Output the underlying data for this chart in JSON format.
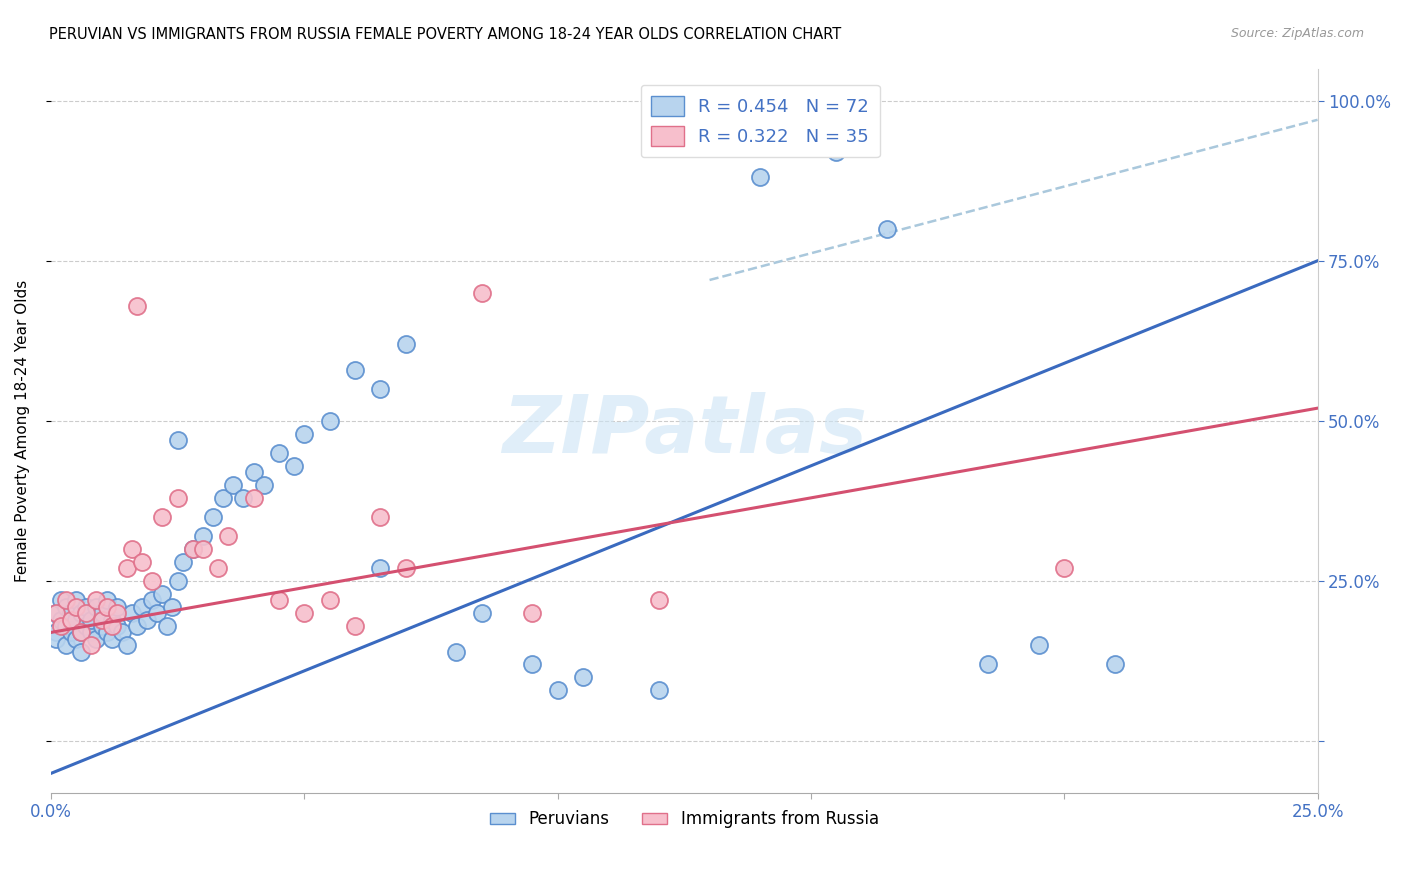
{
  "title": "PERUVIAN VS IMMIGRANTS FROM RUSSIA FEMALE POVERTY AMONG 18-24 YEAR OLDS CORRELATION CHART",
  "source": "Source: ZipAtlas.com",
  "ylabel": "Female Poverty Among 18-24 Year Olds",
  "xlim": [
    0.0,
    0.25
  ],
  "ylim": [
    -0.08,
    1.05
  ],
  "peruvians_R": 0.454,
  "peruvians_N": 72,
  "russia_R": 0.322,
  "russia_N": 35,
  "peruvian_fill": "#b8d4ee",
  "russia_fill": "#f7bfcc",
  "peruvian_edge": "#5b8fcf",
  "russia_edge": "#e0708a",
  "peruvian_line_color": "#3a6abf",
  "russia_line_color": "#d45070",
  "dashed_line_color": "#aac8dc",
  "watermark": "ZIPatlas",
  "blue_line_x0": 0.0,
  "blue_line_y0": -0.05,
  "blue_line_x1": 0.25,
  "blue_line_y1": 0.75,
  "pink_line_x0": 0.0,
  "pink_line_y0": 0.17,
  "pink_line_x1": 0.25,
  "pink_line_y1": 0.52,
  "dash_line_x0": 0.13,
  "dash_line_y0": 0.72,
  "dash_line_x1": 0.25,
  "dash_line_y1": 0.97,
  "peru_x": [
    0.001,
    0.001,
    0.001,
    0.002,
    0.002,
    0.003,
    0.003,
    0.003,
    0.004,
    0.004,
    0.005,
    0.005,
    0.005,
    0.006,
    0.006,
    0.006,
    0.007,
    0.007,
    0.008,
    0.008,
    0.009,
    0.009,
    0.01,
    0.01,
    0.011,
    0.011,
    0.012,
    0.012,
    0.013,
    0.013,
    0.014,
    0.015,
    0.016,
    0.017,
    0.018,
    0.019,
    0.02,
    0.021,
    0.022,
    0.023,
    0.024,
    0.025,
    0.026,
    0.028,
    0.03,
    0.032,
    0.034,
    0.036,
    0.038,
    0.04,
    0.042,
    0.045,
    0.048,
    0.05,
    0.055,
    0.06,
    0.065,
    0.07,
    0.08,
    0.085,
    0.095,
    0.1,
    0.105,
    0.12,
    0.14,
    0.155,
    0.165,
    0.185,
    0.195,
    0.21,
    0.065,
    0.025
  ],
  "peru_y": [
    0.17,
    0.2,
    0.16,
    0.19,
    0.22,
    0.18,
    0.21,
    0.15,
    0.17,
    0.2,
    0.16,
    0.19,
    0.22,
    0.17,
    0.2,
    0.14,
    0.18,
    0.21,
    0.17,
    0.19,
    0.16,
    0.21,
    0.18,
    0.2,
    0.17,
    0.22,
    0.16,
    0.19,
    0.18,
    0.21,
    0.17,
    0.15,
    0.2,
    0.18,
    0.21,
    0.19,
    0.22,
    0.2,
    0.23,
    0.18,
    0.21,
    0.25,
    0.28,
    0.3,
    0.32,
    0.35,
    0.38,
    0.4,
    0.38,
    0.42,
    0.4,
    0.45,
    0.43,
    0.48,
    0.5,
    0.58,
    0.27,
    0.62,
    0.14,
    0.2,
    0.12,
    0.08,
    0.1,
    0.08,
    0.88,
    0.92,
    0.8,
    0.12,
    0.15,
    0.12,
    0.55,
    0.47
  ],
  "russia_x": [
    0.001,
    0.002,
    0.003,
    0.004,
    0.005,
    0.006,
    0.007,
    0.008,
    0.009,
    0.01,
    0.011,
    0.012,
    0.013,
    0.015,
    0.016,
    0.017,
    0.018,
    0.02,
    0.022,
    0.025,
    0.028,
    0.03,
    0.033,
    0.035,
    0.04,
    0.045,
    0.05,
    0.055,
    0.06,
    0.065,
    0.07,
    0.085,
    0.095,
    0.12,
    0.2
  ],
  "russia_y": [
    0.2,
    0.18,
    0.22,
    0.19,
    0.21,
    0.17,
    0.2,
    0.15,
    0.22,
    0.19,
    0.21,
    0.18,
    0.2,
    0.27,
    0.3,
    0.68,
    0.28,
    0.25,
    0.35,
    0.38,
    0.3,
    0.3,
    0.27,
    0.32,
    0.38,
    0.22,
    0.2,
    0.22,
    0.18,
    0.35,
    0.27,
    0.7,
    0.2,
    0.22,
    0.27
  ]
}
